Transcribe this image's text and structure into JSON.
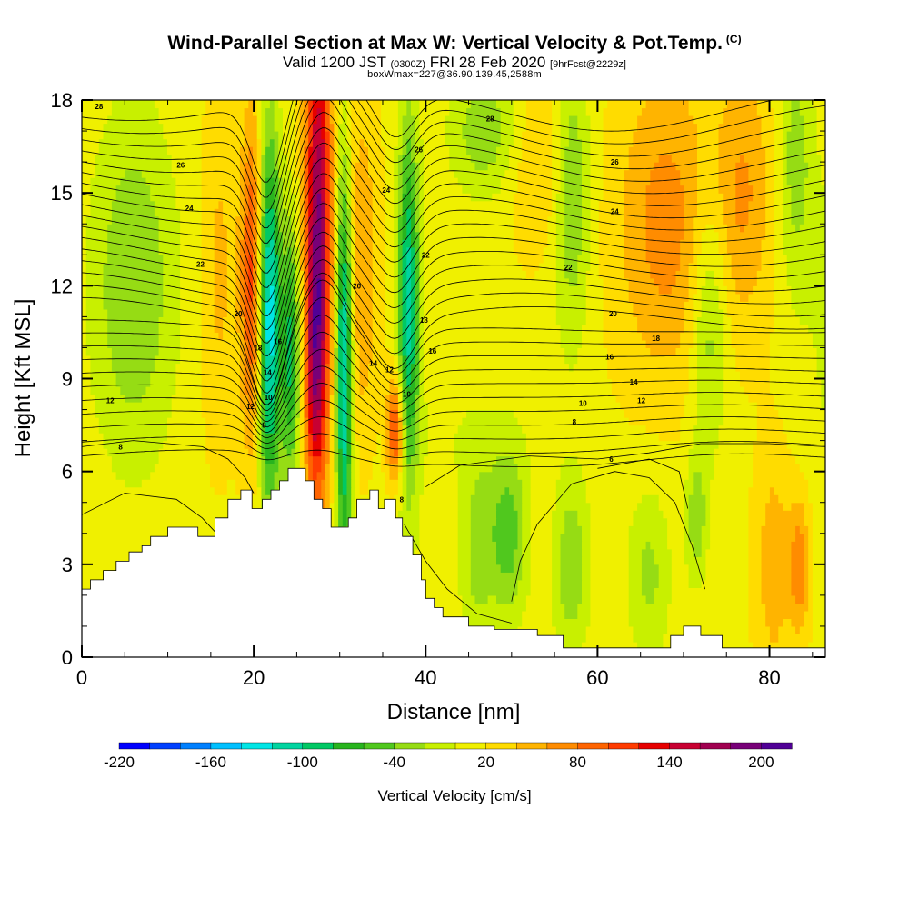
{
  "header": {
    "title": "Wind-Parallel Section at Max W: Vertical Velocity & Pot.Temp.",
    "copyright": "(C)",
    "valid_main": "Valid 1200 JST",
    "valid_utc": "(0300Z)",
    "valid_date": "FRI 28 Feb 2020",
    "valid_fcst": "[9hrFcst@2229z]",
    "boxwmax": "boxWmax=227@36.90,139.45,2588m"
  },
  "chart_data": {
    "type": "heatmap",
    "xlabel": "Distance [nm]",
    "ylabel": "Height [Kft MSL]",
    "xlim": [
      0,
      86.5
    ],
    "ylim": [
      0,
      18
    ],
    "x_ticks": [
      0,
      20,
      40,
      60,
      80
    ],
    "y_ticks": [
      0,
      3,
      6,
      9,
      12,
      15,
      18
    ],
    "colorbar": {
      "title": "Vertical Velocity [cm/s]",
      "range": [
        -220,
        220
      ],
      "labels": [
        -220,
        -160,
        -100,
        -40,
        20,
        80,
        140,
        200
      ],
      "colors": [
        "#0000ff",
        "#0040ff",
        "#0080ff",
        "#00c0ff",
        "#00e5e5",
        "#00d4a0",
        "#00c864",
        "#28b41e",
        "#50c81e",
        "#96dc14",
        "#c8f000",
        "#f0f000",
        "#ffdc00",
        "#ffb400",
        "#ff8c00",
        "#ff6400",
        "#ff3c00",
        "#e60000",
        "#c80032",
        "#a00050",
        "#780078",
        "#500096"
      ]
    },
    "terrain_kft": [
      [
        0,
        2.2
      ],
      [
        1,
        2.2
      ],
      [
        1,
        2.5
      ],
      [
        2.5,
        2.5
      ],
      [
        2.5,
        2.8
      ],
      [
        4,
        2.8
      ],
      [
        4,
        3.1
      ],
      [
        5.5,
        3.1
      ],
      [
        5.5,
        3.4
      ],
      [
        7,
        3.4
      ],
      [
        7,
        3.6
      ],
      [
        8,
        3.6
      ],
      [
        8,
        3.9
      ],
      [
        10,
        3.9
      ],
      [
        10,
        4.2
      ],
      [
        13.5,
        4.2
      ],
      [
        13.5,
        3.9
      ],
      [
        15.5,
        3.9
      ],
      [
        15.5,
        4.5
      ],
      [
        17,
        4.5
      ],
      [
        17,
        5.1
      ],
      [
        18.5,
        5.1
      ],
      [
        18.5,
        5.4
      ],
      [
        19.8,
        5.4
      ],
      [
        19.8,
        4.8
      ],
      [
        21,
        4.8
      ],
      [
        21,
        5.1
      ],
      [
        22,
        5.1
      ],
      [
        22,
        5.4
      ],
      [
        23,
        5.4
      ],
      [
        23,
        5.7
      ],
      [
        24,
        5.7
      ],
      [
        24,
        6.1
      ],
      [
        26,
        6.1
      ],
      [
        26,
        5.7
      ],
      [
        27,
        5.7
      ],
      [
        27,
        5.1
      ],
      [
        28,
        5.1
      ],
      [
        28,
        4.8
      ],
      [
        29,
        4.8
      ],
      [
        29,
        4.2
      ],
      [
        31,
        4.2
      ],
      [
        31,
        4.5
      ],
      [
        32,
        4.5
      ],
      [
        32,
        5.1
      ],
      [
        33.5,
        5.1
      ],
      [
        33.5,
        5.4
      ],
      [
        34.5,
        5.4
      ],
      [
        34.5,
        4.8
      ],
      [
        35.2,
        4.8
      ],
      [
        35.2,
        5.1
      ],
      [
        36.5,
        5.1
      ],
      [
        36.5,
        4.5
      ],
      [
        37.3,
        4.5
      ],
      [
        37.3,
        3.9
      ],
      [
        38.5,
        3.9
      ],
      [
        38.5,
        3.3
      ],
      [
        39.5,
        3.3
      ],
      [
        39.5,
        2.5
      ],
      [
        40,
        2.5
      ],
      [
        40,
        1.9
      ],
      [
        41,
        1.9
      ],
      [
        41,
        1.6
      ],
      [
        42,
        1.6
      ],
      [
        42,
        1.3
      ],
      [
        45,
        1.3
      ],
      [
        45,
        1.0
      ],
      [
        48,
        1.0
      ],
      [
        48,
        0.9
      ],
      [
        53,
        0.9
      ],
      [
        53,
        0.7
      ],
      [
        56,
        0.7
      ],
      [
        56,
        0.3
      ],
      [
        65,
        0.3
      ],
      [
        65,
        0.3
      ],
      [
        68.5,
        0.3
      ],
      [
        68.5,
        0.7
      ],
      [
        70,
        0.7
      ],
      [
        70,
        1.0
      ],
      [
        72,
        1.0
      ],
      [
        72,
        0.7
      ],
      [
        74.5,
        0.7
      ],
      [
        74.5,
        0.3
      ],
      [
        86.5,
        0.3
      ]
    ],
    "potential_temperature_contour_labels": [
      {
        "label": "28",
        "x": 2,
        "y": 17.8
      },
      {
        "label": "26",
        "x": 11.5,
        "y": 15.9
      },
      {
        "label": "24",
        "x": 12.5,
        "y": 14.5
      },
      {
        "label": "22",
        "x": 13.8,
        "y": 12.7
      },
      {
        "label": "20",
        "x": 18.2,
        "y": 11.1
      },
      {
        "label": "18",
        "x": 20.5,
        "y": 10.0
      },
      {
        "label": "16",
        "x": 22.8,
        "y": 10.2
      },
      {
        "label": "14",
        "x": 21.6,
        "y": 9.2
      },
      {
        "label": "12",
        "x": 19.6,
        "y": 8.1
      },
      {
        "label": "10",
        "x": 21.7,
        "y": 8.4
      },
      {
        "label": "8",
        "x": 21.2,
        "y": 7.5
      },
      {
        "label": "12",
        "x": 3.3,
        "y": 8.3
      },
      {
        "label": "8",
        "x": 4.5,
        "y": 6.8
      },
      {
        "label": "26",
        "x": 39.2,
        "y": 16.4
      },
      {
        "label": "24",
        "x": 35.4,
        "y": 15.1
      },
      {
        "label": "22",
        "x": 40.0,
        "y": 13.0
      },
      {
        "label": "20",
        "x": 32.0,
        "y": 12.0
      },
      {
        "label": "18",
        "x": 39.8,
        "y": 10.9
      },
      {
        "label": "16",
        "x": 40.8,
        "y": 9.9
      },
      {
        "label": "14",
        "x": 33.9,
        "y": 9.5
      },
      {
        "label": "12",
        "x": 35.8,
        "y": 9.3
      },
      {
        "label": "10",
        "x": 37.8,
        "y": 8.5
      },
      {
        "label": "8",
        "x": 37.2,
        "y": 5.1
      },
      {
        "label": "28",
        "x": 47.5,
        "y": 17.4
      },
      {
        "label": "26",
        "x": 62.0,
        "y": 16.0
      },
      {
        "label": "24",
        "x": 62.0,
        "y": 14.4
      },
      {
        "label": "22",
        "x": 56.6,
        "y": 12.6
      },
      {
        "label": "20",
        "x": 61.8,
        "y": 11.1
      },
      {
        "label": "18",
        "x": 66.8,
        "y": 10.3
      },
      {
        "label": "16",
        "x": 61.4,
        "y": 9.7
      },
      {
        "label": "14",
        "x": 64.2,
        "y": 8.9
      },
      {
        "label": "12",
        "x": 65.1,
        "y": 8.3
      },
      {
        "label": "10",
        "x": 58.3,
        "y": 8.2
      },
      {
        "label": "8",
        "x": 57.3,
        "y": 7.6
      },
      {
        "label": "6",
        "x": 61.6,
        "y": 6.4
      }
    ]
  }
}
